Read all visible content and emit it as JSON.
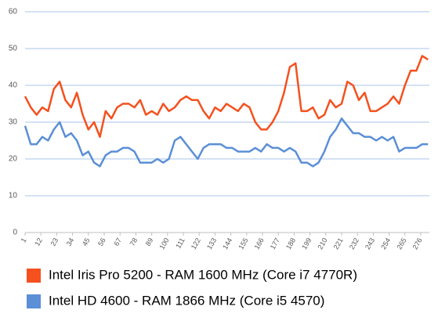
{
  "chart_data": {
    "type": "line",
    "x": [
      1,
      5,
      9,
      13,
      17,
      21,
      25,
      29,
      33,
      37,
      41,
      45,
      49,
      53,
      57,
      61,
      65,
      69,
      73,
      77,
      81,
      85,
      89,
      93,
      97,
      101,
      105,
      109,
      113,
      117,
      121,
      125,
      129,
      133,
      137,
      141,
      145,
      149,
      153,
      157,
      161,
      165,
      169,
      173,
      177,
      181,
      185,
      189,
      193,
      197,
      201,
      205,
      209,
      213,
      217,
      221,
      225,
      229,
      233,
      237,
      241,
      245,
      249,
      253,
      257,
      261,
      265,
      269,
      273,
      277,
      281
    ],
    "series": [
      {
        "name": "Intel Iris Pro 5200 - RAM 1600 MHz (Core i7 4770R)",
        "color": "#f4511e",
        "values": [
          37,
          34,
          32,
          34,
          33,
          39,
          41,
          36,
          34,
          38,
          32,
          28,
          30,
          26,
          33,
          31,
          34,
          35,
          35,
          34,
          36,
          32,
          33,
          32,
          35,
          33,
          34,
          36,
          37,
          36,
          36,
          33,
          31,
          34,
          33,
          35,
          34,
          33,
          35,
          34,
          30,
          28,
          28,
          30,
          33,
          38,
          45,
          46,
          33,
          33,
          34,
          31,
          32,
          36,
          34,
          35,
          41,
          40,
          36,
          38,
          33,
          33,
          34,
          35,
          37,
          35,
          40,
          44,
          44,
          48,
          47
        ]
      },
      {
        "name": "Intel HD 4600 - RAM 1866 MHz (Core i5 4570)",
        "color": "#5b8fd6",
        "values": [
          29,
          24,
          24,
          26,
          25,
          28,
          30,
          26,
          27,
          25,
          21,
          22,
          19,
          18,
          21,
          22,
          22,
          23,
          23,
          22,
          19,
          19,
          19,
          20,
          19,
          20,
          25,
          26,
          24,
          22,
          20,
          23,
          24,
          24,
          24,
          23,
          23,
          22,
          22,
          22,
          23,
          22,
          24,
          23,
          23,
          22,
          23,
          22,
          19,
          19,
          18,
          19,
          22,
          26,
          28,
          31,
          29,
          27,
          27,
          26,
          26,
          25,
          26,
          25,
          26,
          22,
          23,
          23,
          23,
          24,
          24
        ]
      }
    ],
    "xlim": [
      1,
      282
    ],
    "xticks": [
      1,
      12,
      23,
      34,
      45,
      56,
      67,
      78,
      89,
      100,
      111,
      122,
      133,
      144,
      155,
      166,
      177,
      188,
      199,
      210,
      221,
      232,
      243,
      254,
      265,
      276
    ],
    "ylim": [
      0,
      60
    ],
    "yticks": [
      0,
      10,
      20,
      30,
      40,
      50,
      60
    ],
    "grid": true
  }
}
